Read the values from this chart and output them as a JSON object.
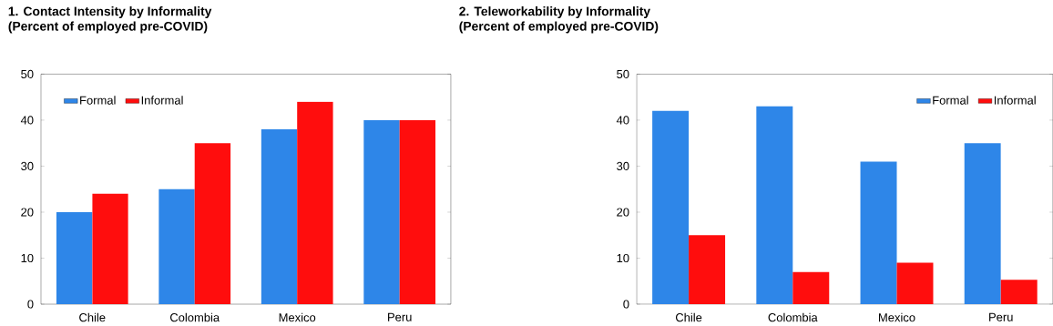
{
  "chart_data": [
    {
      "type": "bar",
      "title": "1.  Contact Intensity by Informality",
      "subtitle": "(Percent of employed pre-COVID)",
      "categories": [
        "Chile",
        "Colombia",
        "Mexico",
        "Peru"
      ],
      "series": [
        {
          "name": "Formal",
          "color": "#2e86e8",
          "values": [
            20,
            25,
            38,
            40
          ]
        },
        {
          "name": "Informal",
          "color": "#ff0d0d",
          "values": [
            24,
            35,
            44,
            40
          ]
        }
      ],
      "ylim": [
        0,
        50
      ],
      "yticks": [
        0,
        10,
        20,
        30,
        40,
        50
      ],
      "legend": "top left"
    },
    {
      "type": "bar",
      "title": "2.  Teleworkability by Informality",
      "subtitle": "(Percent of employed pre-COVID)",
      "categories": [
        "Chile",
        "Colombia",
        "Mexico",
        "Peru"
      ],
      "series": [
        {
          "name": "Formal",
          "color": "#2e86e8",
          "values": [
            42,
            43,
            31,
            35
          ]
        },
        {
          "name": "Informal",
          "color": "#ff0d0d",
          "values": [
            15,
            7,
            9,
            5.3
          ]
        }
      ],
      "ylim": [
        0,
        50
      ],
      "yticks": [
        0,
        10,
        20,
        30,
        40,
        50
      ],
      "legend": "top right"
    }
  ]
}
